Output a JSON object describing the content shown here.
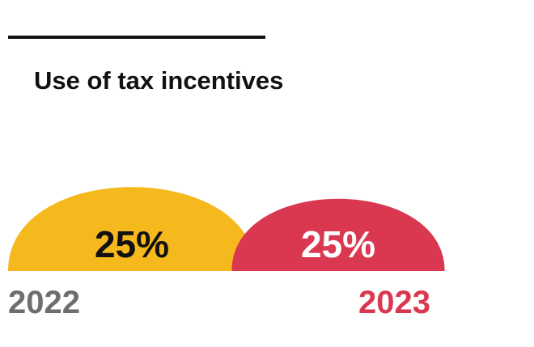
{
  "title": "Use of tax incentives",
  "chart_data": {
    "type": "area",
    "title": "Use of tax incentives",
    "unit": "%",
    "series": [
      {
        "category": "2022",
        "value": 25,
        "label": "25%",
        "color": "#F5B91E",
        "label_color": "#111111",
        "year_color": "#6E6E6E"
      },
      {
        "category": "2023",
        "value": 25,
        "label": "25%",
        "color": "#D93850",
        "label_color": "#FFFFFF",
        "year_color": "#D93850"
      }
    ]
  }
}
